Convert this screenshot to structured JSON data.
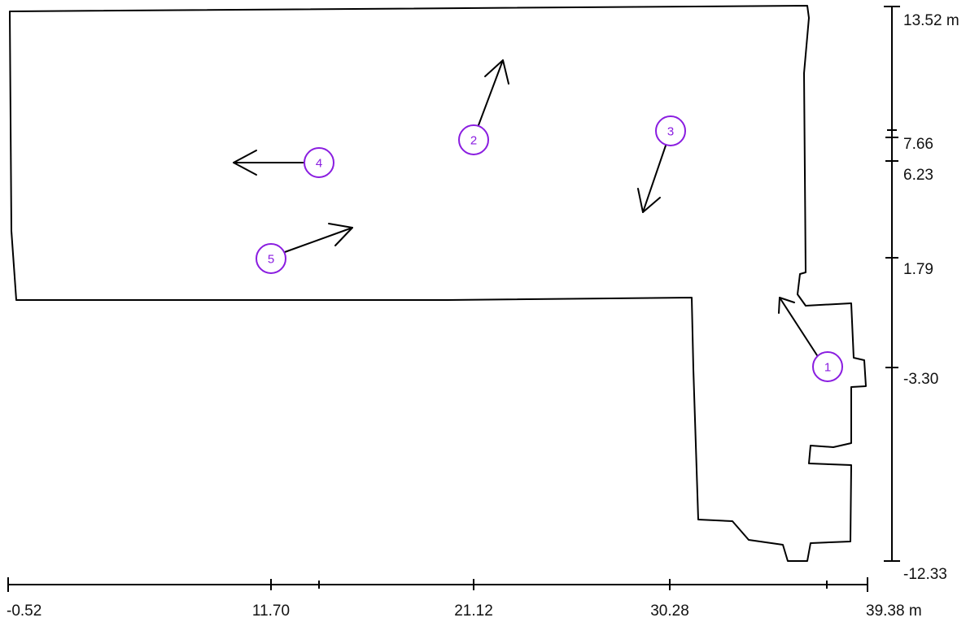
{
  "diagram": {
    "colors": {
      "outline": "#000000",
      "marker": "#8a1de0",
      "text": "#111111"
    },
    "x_axis": {
      "unit": "m",
      "ticks": [
        {
          "label": "-0.52"
        },
        {
          "label": "11.70"
        },
        {
          "label": ""
        },
        {
          "label": "21.12"
        },
        {
          "label": "30.28"
        },
        {
          "label": ""
        },
        {
          "label": "39.38 m"
        }
      ]
    },
    "y_axis": {
      "unit": "m",
      "ticks": [
        {
          "label": "13.52 m"
        },
        {
          "label": ""
        },
        {
          "label": "7.66"
        },
        {
          "label": "6.23"
        },
        {
          "label": "1.79"
        },
        {
          "label": "-3.30"
        },
        {
          "label": "-12.33"
        }
      ]
    },
    "markers": [
      {
        "label": "1"
      },
      {
        "label": "2"
      },
      {
        "label": "3"
      },
      {
        "label": "4"
      },
      {
        "label": "5"
      }
    ]
  }
}
